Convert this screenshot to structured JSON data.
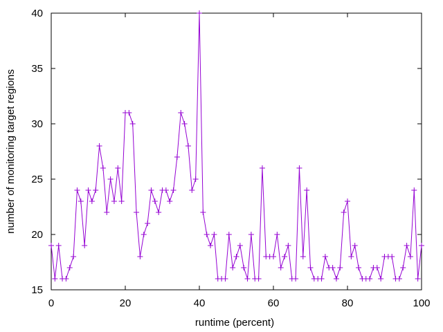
{
  "chart_data": {
    "type": "line",
    "title": "",
    "xlabel": "runtime (percent)",
    "ylabel": "number of monitoring target regions",
    "xlim": [
      0,
      100
    ],
    "ylim": [
      15,
      40
    ],
    "xticks": [
      0,
      20,
      40,
      60,
      80,
      100
    ],
    "yticks": [
      15,
      20,
      25,
      30,
      35,
      40
    ],
    "xtick_labels": [
      "0",
      "20",
      "40",
      "60",
      "80",
      "100"
    ],
    "ytick_labels": [
      "15",
      "20",
      "25",
      "30",
      "35",
      "40"
    ],
    "grid": false,
    "legend": "none",
    "series": [
      {
        "color": "#9400d3",
        "marker": "plus",
        "x": [
          0,
          1,
          2,
          3,
          4,
          5,
          6,
          7,
          8,
          9,
          10,
          11,
          12,
          13,
          14,
          15,
          16,
          17,
          18,
          19,
          20,
          21,
          22,
          23,
          24,
          25,
          26,
          27,
          28,
          29,
          30,
          31,
          32,
          33,
          34,
          35,
          36,
          37,
          38,
          39,
          40,
          41,
          42,
          43,
          44,
          45,
          46,
          47,
          48,
          49,
          50,
          51,
          52,
          53,
          54,
          55,
          56,
          57,
          58,
          59,
          60,
          61,
          62,
          63,
          64,
          65,
          66,
          67,
          68,
          69,
          70,
          71,
          72,
          73,
          74,
          75,
          76,
          77,
          78,
          79,
          80,
          81,
          82,
          83,
          84,
          85,
          86,
          87,
          88,
          89,
          90,
          91,
          92,
          93,
          94,
          95,
          96,
          97,
          98,
          99,
          100
        ],
        "y": [
          19,
          16,
          19,
          16,
          16,
          17,
          18,
          24,
          23,
          19,
          24,
          23,
          24,
          28,
          26,
          22,
          25,
          23,
          26,
          23,
          31,
          31,
          30,
          22,
          18,
          20,
          21,
          24,
          23,
          22,
          24,
          24,
          23,
          24,
          27,
          31,
          30,
          28,
          24,
          25,
          40,
          22,
          20,
          19,
          20,
          16,
          16,
          16,
          20,
          17,
          18,
          19,
          17,
          16,
          20,
          16,
          16,
          26,
          18,
          18,
          18,
          20,
          17,
          18,
          19,
          16,
          16,
          26,
          18,
          24,
          17,
          16,
          16,
          16,
          18,
          17,
          17,
          16,
          17,
          22,
          23,
          18,
          19,
          17,
          16,
          16,
          16,
          17,
          17,
          16,
          18,
          18,
          18,
          16,
          16,
          17,
          19,
          18,
          24,
          16,
          19
        ]
      }
    ]
  }
}
